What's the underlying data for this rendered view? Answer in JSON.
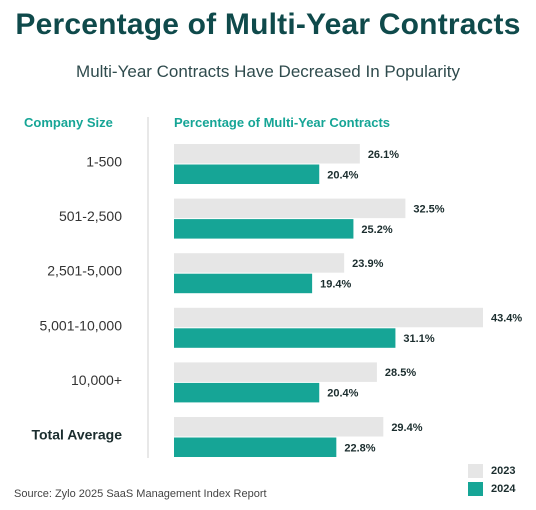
{
  "title": "Percentage of Multi-Year Contracts",
  "subtitle": "Multi-Year Contracts Have Decreased In Popularity",
  "headers": {
    "left": "Company Size",
    "right": "Percentage of Multi-Year Contracts"
  },
  "source": "Source: Zylo 2025 SaaS Management Index Report",
  "colors": {
    "title": "#0f4a4b",
    "accent": "#16a596",
    "series_2023": "#e6e6e6",
    "series_2024": "#16a596"
  },
  "chart_data": {
    "type": "bar",
    "orientation": "horizontal",
    "categories": [
      "1-500",
      "501-2,500",
      "2,501-5,000",
      "5,001-10,000",
      "10,000+",
      "Total Average"
    ],
    "series": [
      {
        "name": "2023",
        "values": [
          26.1,
          32.5,
          23.9,
          43.4,
          28.5,
          29.4
        ]
      },
      {
        "name": "2024",
        "values": [
          20.4,
          25.2,
          19.4,
          31.1,
          20.4,
          22.8
        ]
      }
    ],
    "value_suffix": "%",
    "xlim": [
      0,
      43.4
    ],
    "legend_position": "bottom-right",
    "grid": false
  }
}
